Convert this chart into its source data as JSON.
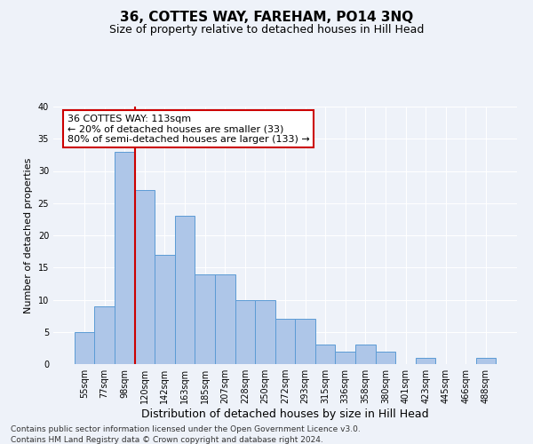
{
  "title": "36, COTTES WAY, FAREHAM, PO14 3NQ",
  "subtitle": "Size of property relative to detached houses in Hill Head",
  "xlabel": "Distribution of detached houses by size in Hill Head",
  "ylabel": "Number of detached properties",
  "categories": [
    "55sqm",
    "77sqm",
    "98sqm",
    "120sqm",
    "142sqm",
    "163sqm",
    "185sqm",
    "207sqm",
    "228sqm",
    "250sqm",
    "272sqm",
    "293sqm",
    "315sqm",
    "336sqm",
    "358sqm",
    "380sqm",
    "401sqm",
    "423sqm",
    "445sqm",
    "466sqm",
    "488sqm"
  ],
  "values": [
    5,
    9,
    33,
    27,
    17,
    23,
    14,
    14,
    10,
    10,
    7,
    7,
    3,
    2,
    3,
    2,
    0,
    1,
    0,
    0,
    1
  ],
  "bar_color": "#aec6e8",
  "bar_edge_color": "#5b9bd5",
  "vline_index": 2.5,
  "vline_color": "#cc0000",
  "annotation_text": "36 COTTES WAY: 113sqm\n← 20% of detached houses are smaller (33)\n80% of semi-detached houses are larger (133) →",
  "annotation_box_color": "white",
  "annotation_box_edge_color": "#cc0000",
  "ylim": [
    0,
    40
  ],
  "yticks": [
    0,
    5,
    10,
    15,
    20,
    25,
    30,
    35,
    40
  ],
  "footnote_line1": "Contains HM Land Registry data © Crown copyright and database right 2024.",
  "footnote_line2": "Contains public sector information licensed under the Open Government Licence v3.0.",
  "title_fontsize": 11,
  "subtitle_fontsize": 9,
  "xlabel_fontsize": 9,
  "ylabel_fontsize": 8,
  "tick_fontsize": 7,
  "annotation_fontsize": 8,
  "footnote_fontsize": 6.5,
  "background_color": "#eef2f9",
  "grid_color": "#ffffff"
}
